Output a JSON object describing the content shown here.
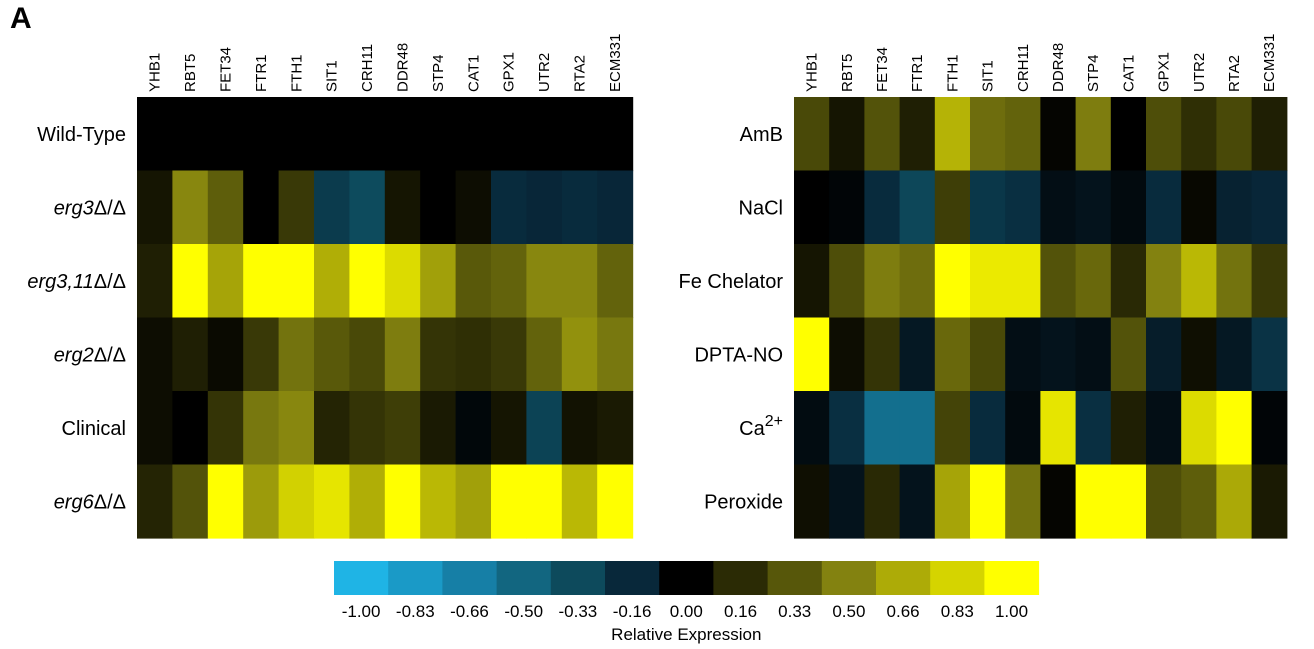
{
  "panel_label": "A",
  "colorbar": {
    "title": "Relative Expression",
    "ticks": [
      "-1.00",
      "-0.83",
      "-0.66",
      "-0.50",
      "-0.33",
      "-0.16",
      "0.00",
      "0.16",
      "0.33",
      "0.50",
      "0.66",
      "0.83",
      "1.00"
    ],
    "colors": [
      "#1fb4e5",
      "#1a9ac7",
      "#167fa6",
      "#126680",
      "#0d4a5c",
      "#08283a",
      "#000000",
      "#2b2b05",
      "#57570a",
      "#838210",
      "#adab07",
      "#d5d400",
      "#ffff00"
    ]
  },
  "chart_data": [
    {
      "type": "heatmap",
      "title": "",
      "genes": [
        "YHB1",
        "RBT5",
        "FET34",
        "FTR1",
        "FTH1",
        "SIT1",
        "CRH11",
        "DDR48",
        "STP4",
        "CAT1",
        "GPX1",
        "UTR2",
        "RTA2",
        "ECM331"
      ],
      "rows": [
        {
          "label": "Wild-Type",
          "italic": false,
          "values": [
            0,
            0,
            0,
            0,
            0,
            0,
            0,
            0,
            0,
            0,
            0,
            0,
            0,
            0
          ]
        },
        {
          "label": "erg3Δ/Δ",
          "italic": true,
          "values": [
            0.08,
            0.52,
            0.36,
            0,
            0.22,
            -0.26,
            -0.34,
            0.08,
            0,
            0.05,
            -0.18,
            -0.16,
            -0.18,
            -0.16
          ]
        },
        {
          "label": "erg3,11Δ/Δ",
          "italic": true,
          "values": [
            0.12,
            1.0,
            0.64,
            1.0,
            1.0,
            0.68,
            1.0,
            0.86,
            0.62,
            0.34,
            0.38,
            0.52,
            0.52,
            0.38
          ]
        },
        {
          "label": "erg2Δ/Δ",
          "italic": true,
          "values": [
            0.05,
            0.12,
            0.04,
            0.22,
            0.44,
            0.34,
            0.28,
            0.48,
            0.2,
            0.18,
            0.22,
            0.38,
            0.56,
            0.46
          ]
        },
        {
          "label": "Clinical",
          "italic": false,
          "values": [
            0.05,
            0,
            0.2,
            0.46,
            0.52,
            0.14,
            0.2,
            0.24,
            0.1,
            -0.03,
            0.08,
            -0.3,
            0.07,
            0.1
          ]
        },
        {
          "label": "erg6Δ/Δ",
          "italic": true,
          "values": [
            0.14,
            0.32,
            1.0,
            0.6,
            0.82,
            0.9,
            0.68,
            1.0,
            0.72,
            0.62,
            1.0,
            1.0,
            0.72,
            1.0
          ]
        }
      ]
    },
    {
      "type": "heatmap",
      "title": "",
      "genes": [
        "YHB1",
        "RBT5",
        "FET34",
        "FTR1",
        "FTH1",
        "SIT1",
        "CRH11",
        "DDR48",
        "STP4",
        "CAT1",
        "GPX1",
        "UTR2",
        "RTA2",
        "ECM331"
      ],
      "rows": [
        {
          "label": "AmB",
          "italic": false,
          "values": [
            0.28,
            0.08,
            0.32,
            0.12,
            0.7,
            0.42,
            0.38,
            0.02,
            0.48,
            0,
            0.3,
            0.18,
            0.28,
            0.12
          ]
        },
        {
          "label": "NaCl",
          "italic": false,
          "values": [
            0,
            -0.02,
            -0.18,
            -0.32,
            0.24,
            -0.24,
            -0.2,
            -0.06,
            -0.08,
            -0.04,
            -0.18,
            0.03,
            -0.14,
            -0.16
          ]
        },
        {
          "label": "Fe Chelator",
          "italic": false,
          "values": [
            0.08,
            0.3,
            0.48,
            0.42,
            1.0,
            0.92,
            0.92,
            0.32,
            0.4,
            0.16,
            0.5,
            0.72,
            0.44,
            0.22
          ]
        },
        {
          "label": "DPTA-NO",
          "italic": false,
          "values": [
            1.0,
            0.05,
            0.2,
            -0.1,
            0.4,
            0.28,
            -0.06,
            -0.08,
            -0.06,
            0.32,
            -0.12,
            0.06,
            -0.1,
            -0.22
          ]
        },
        {
          "label": "Ca2+",
          "italic": false,
          "values": [
            -0.05,
            -0.2,
            -0.56,
            -0.56,
            0.26,
            -0.18,
            -0.04,
            0.9,
            -0.2,
            0.12,
            -0.06,
            0.86,
            1.0,
            -0.02
          ]
        },
        {
          "label": "Peroxide",
          "italic": false,
          "values": [
            0.06,
            -0.08,
            0.16,
            -0.08,
            0.64,
            1.0,
            0.44,
            0.02,
            1.0,
            1.0,
            0.3,
            0.36,
            0.66,
            0.1
          ]
        }
      ]
    }
  ]
}
